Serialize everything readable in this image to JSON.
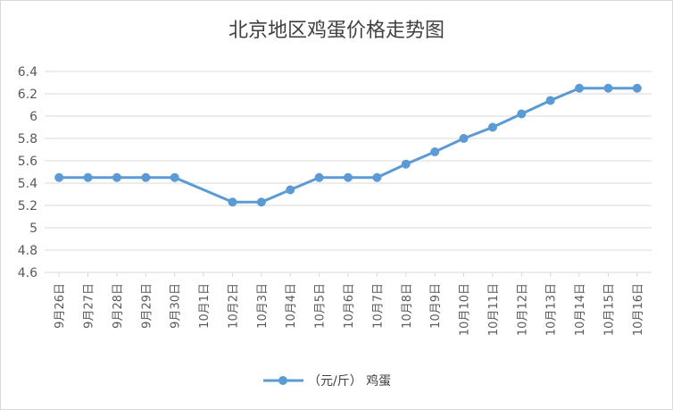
{
  "chart_data": {
    "type": "line",
    "title": "北京地区鸡蛋价格走势图",
    "categories": [
      "9月26日",
      "9月27日",
      "9月28日",
      "9月29日",
      "9月30日",
      "10月1日",
      "10月2日",
      "10月3日",
      "10月4日",
      "10月5日",
      "10月6日",
      "10月7日",
      "10月8日",
      "10月9日",
      "10月10日",
      "10月11日",
      "10月12日",
      "10月13日",
      "10月14日",
      "10月15日",
      "10月16日"
    ],
    "series": [
      {
        "name": "（元/斤） 鸡蛋",
        "values": [
          5.45,
          5.45,
          5.45,
          5.45,
          5.45,
          null,
          5.23,
          5.23,
          5.34,
          5.45,
          5.45,
          5.45,
          5.57,
          5.68,
          5.8,
          5.9,
          6.02,
          6.14,
          6.25,
          6.25,
          6.25
        ],
        "color": "#5b9bd5"
      }
    ],
    "ylim": [
      4.6,
      6.4
    ],
    "yticks": [
      "4.6",
      "4.8",
      "5",
      "5.2",
      "5.4",
      "5.6",
      "5.8",
      "6",
      "6.2",
      "6.4"
    ],
    "grid": true,
    "legend_position": "bottom"
  },
  "colors": {
    "line": "#5b9bd5",
    "grid": "#d9d9d9",
    "text": "#595959"
  }
}
